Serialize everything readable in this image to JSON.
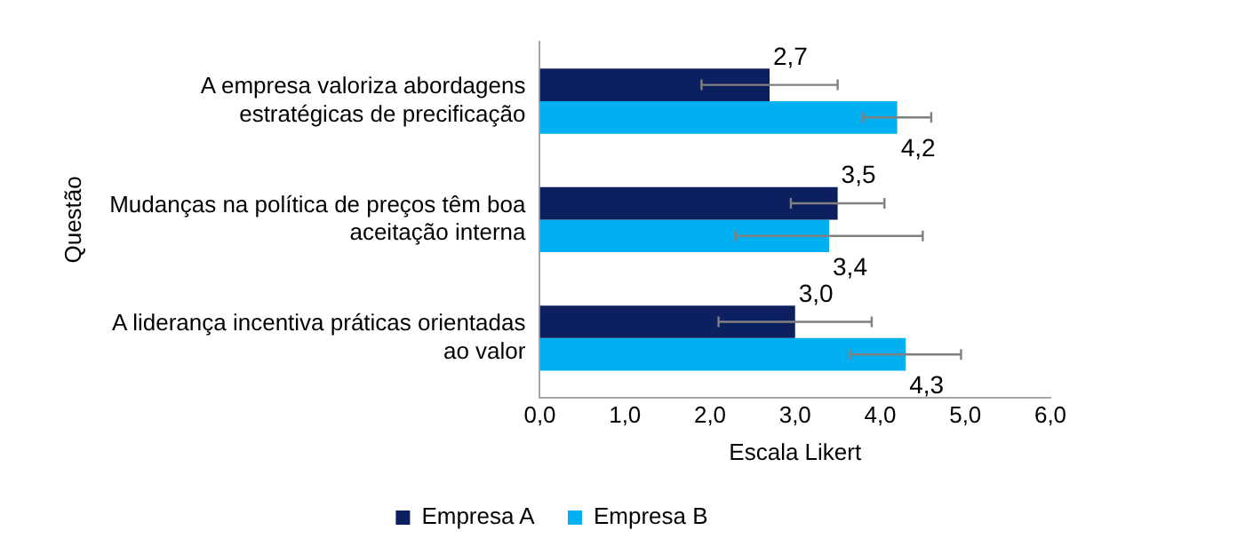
{
  "chart_data": {
    "type": "bar",
    "orientation": "horizontal",
    "xlabel": "Escala Likert",
    "ylabel": "Questão",
    "categories": [
      "A empresa valoriza abordagens estratégicas de precificação",
      "Mudanças na política de preços têm boa aceitação interna",
      "A liderança incentiva práticas orientadas ao valor"
    ],
    "series": [
      {
        "name": "Empresa A",
        "color": "#0c1f5e",
        "values": [
          2.7,
          3.5,
          3.0
        ],
        "errors": [
          0.8,
          0.55,
          0.9
        ],
        "value_labels": [
          "2,7",
          "3,5",
          "3,0"
        ]
      },
      {
        "name": "Empresa B",
        "color": "#00b0f0",
        "values": [
          4.2,
          3.4,
          4.3
        ],
        "errors": [
          0.4,
          1.1,
          0.65
        ],
        "value_labels": [
          "4,2",
          "3,4",
          "4,3"
        ]
      }
    ],
    "xlim": [
      0,
      6
    ],
    "xticks": [
      {
        "value": 0,
        "label": "0,0"
      },
      {
        "value": 1,
        "label": "1,0"
      },
      {
        "value": 2,
        "label": "2,0"
      },
      {
        "value": 3,
        "label": "3,0"
      },
      {
        "value": 4,
        "label": "4,0"
      },
      {
        "value": 5,
        "label": "5,0"
      },
      {
        "value": 6,
        "label": "6,0"
      }
    ],
    "grid": false,
    "legend": "bottom"
  }
}
